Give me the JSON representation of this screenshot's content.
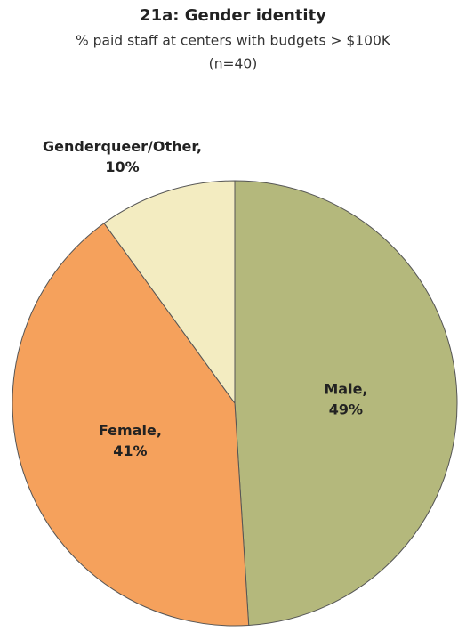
{
  "chart_data": {
    "type": "pie",
    "title": "21a: Gender identity",
    "subtitle": [
      "% paid staff at centers with budgets > $100K",
      "(n=40)"
    ],
    "categories": [
      "Male,",
      "Female,",
      "Genderqueer/Other,"
    ],
    "values": [
      49,
      41,
      10
    ],
    "value_labels": [
      "49%",
      "41%",
      "10%"
    ],
    "colors": [
      "#b4b87c",
      "#f5a15c",
      "#f3ecc1"
    ]
  }
}
